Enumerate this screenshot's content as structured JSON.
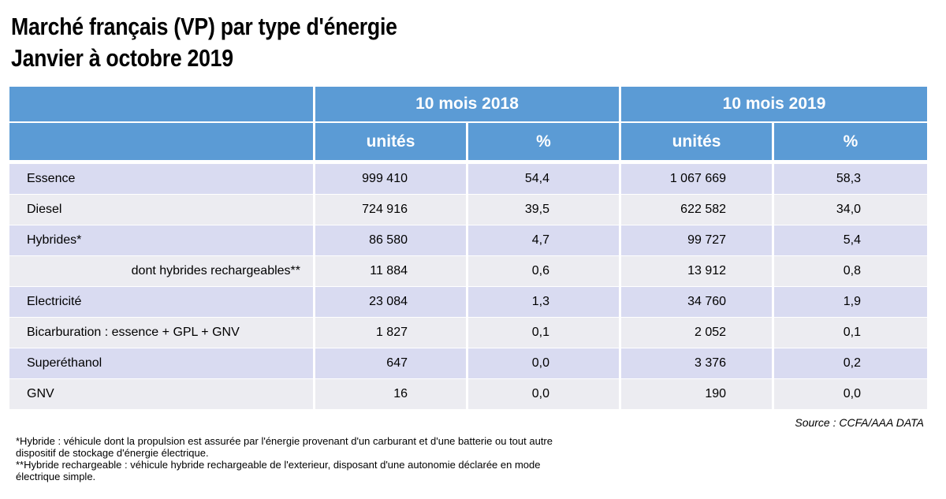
{
  "title": {
    "line1": "Marché français (VP) par type d'énergie",
    "line2": "Janvier à octobre 2019"
  },
  "table": {
    "period_2018": "10 mois 2018",
    "period_2019": "10 mois 2019",
    "col_units": "unités",
    "col_pct": "%",
    "rows": [
      {
        "label": "Essence",
        "u2018": "999 410",
        "p2018": "54,4",
        "u2019": "1 067 669",
        "p2019": "58,3"
      },
      {
        "label": "Diesel",
        "u2018": "724 916",
        "p2018": "39,5",
        "u2019": "622 582",
        "p2019": "34,0"
      },
      {
        "label": "Hybrides*",
        "u2018": "86 580",
        "p2018": "4,7",
        "u2019": "99 727",
        "p2019": "5,4"
      },
      {
        "label": "dont hybrides rechargeables**",
        "u2018": "11 884",
        "p2018": "0,6",
        "u2019": "13 912",
        "p2019": "0,8"
      },
      {
        "label": "Electricité",
        "u2018": "23 084",
        "p2018": "1,3",
        "u2019": "34 760",
        "p2019": "1,9"
      },
      {
        "label": "Bicarburation : essence + GPL + GNV",
        "u2018": "1 827",
        "p2018": "0,1",
        "u2019": "2 052",
        "p2019": "0,1"
      },
      {
        "label": "Superéthanol",
        "u2018": "647",
        "p2018": "0,0",
        "u2019": "3 376",
        "p2019": "0,2"
      },
      {
        "label": "GNV",
        "u2018": "16",
        "p2018": "0,0",
        "u2019": "190",
        "p2019": "0,0"
      }
    ]
  },
  "source": "Source : CCFA/AAA DATA",
  "notes": {
    "line1": "*Hybride : véhicule dont la propulsion est assurée par l'énergie provenant d'un carburant et d'une batterie ou tout autre",
    "line2": "dispositif de stockage d'énergie électrique.",
    "line3": "**Hybride rechargeable : véhicule hybride rechargeable de l'exterieur, disposant d'une autonomie déclarée en mode",
    "line4": "électrique simple."
  }
}
